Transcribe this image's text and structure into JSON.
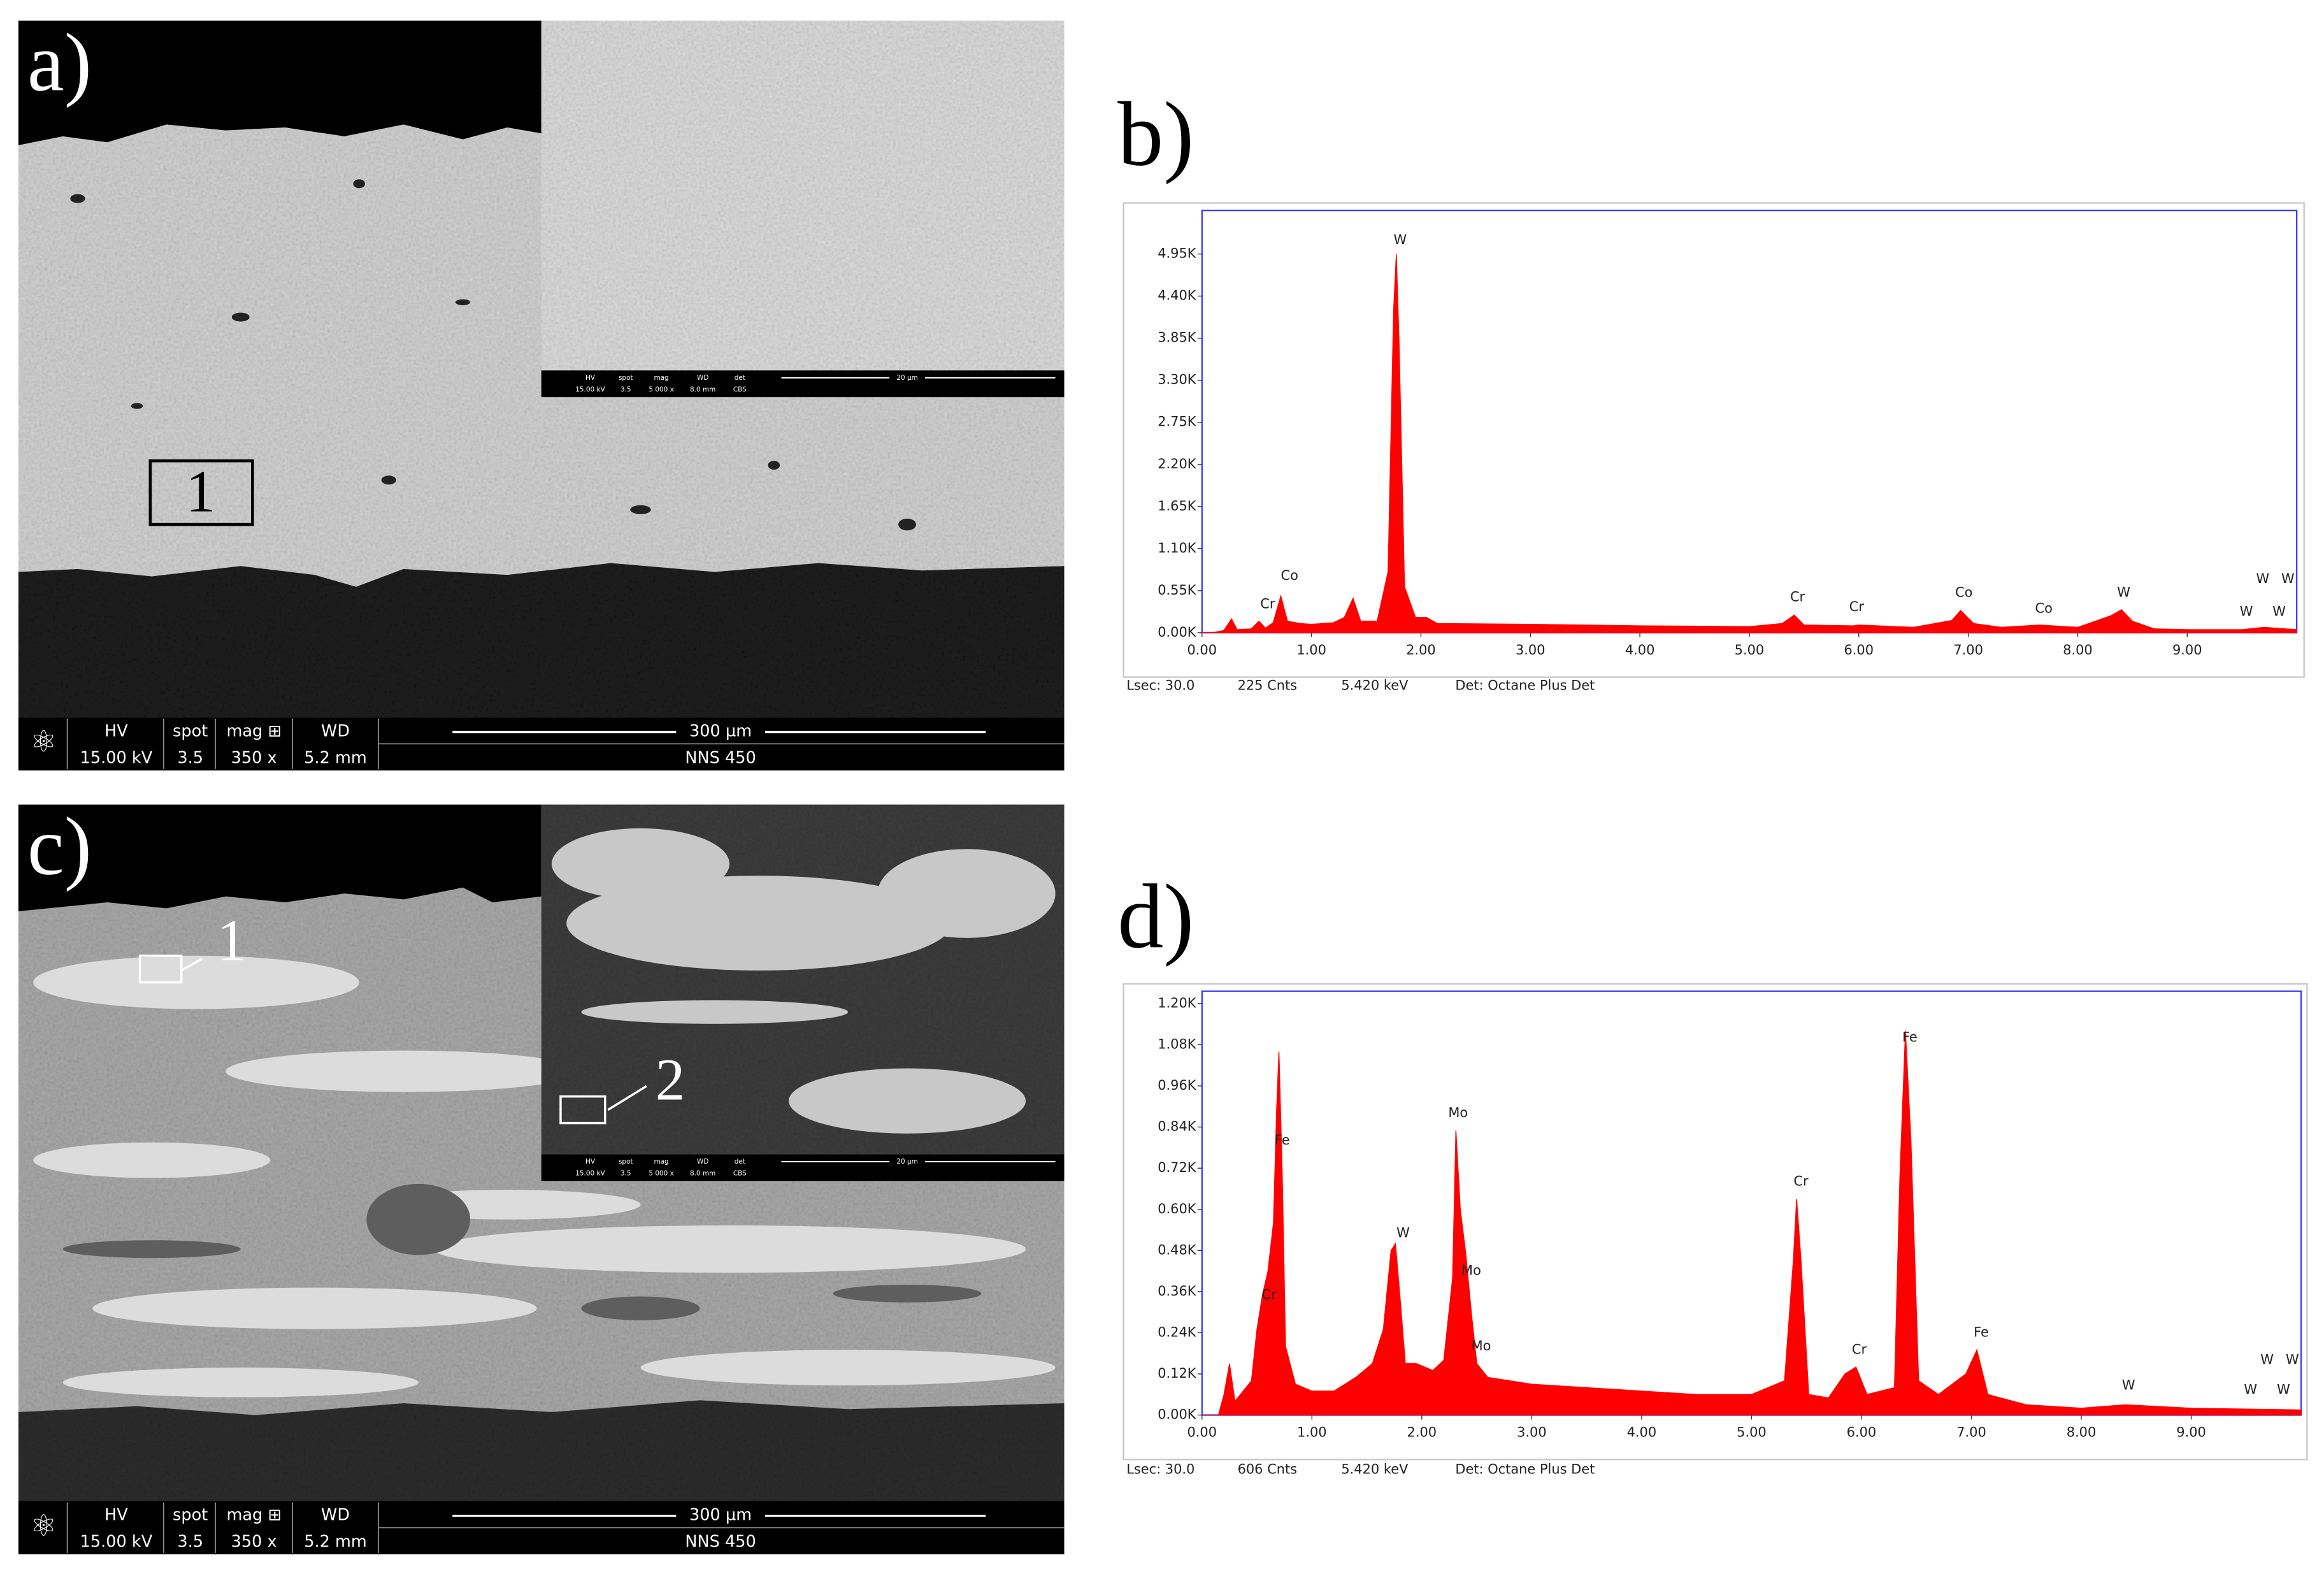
{
  "panels": [
    {
      "label": "a)",
      "info_bar": {
        "labels": [
          "HV",
          "spot",
          "mag ⊞",
          "WD"
        ],
        "values": [
          "15.00 kV",
          "3.5",
          "350 x",
          "5.2 mm"
        ],
        "scale": "300 µm",
        "device": "NNS 450"
      },
      "inset_bar": {
        "labels": [
          "HV",
          "spot",
          "mag",
          "WD",
          "det"
        ],
        "values": [
          "15.00 kV",
          "3.5",
          "5 000 x",
          "8.0 mm",
          "CBS"
        ],
        "scale": "20 µm"
      },
      "markers": [
        "1"
      ]
    },
    {
      "label": "c)",
      "info_bar": {
        "labels": [
          "HV",
          "spot",
          "mag ⊞",
          "WD"
        ],
        "values": [
          "15.00 kV",
          "3.5",
          "350 x",
          "5.2 mm"
        ],
        "scale": "300 µm",
        "device": "NNS 450"
      },
      "inset_bar": {
        "labels": [
          "HV",
          "spot",
          "mag",
          "WD",
          "det"
        ],
        "values": [
          "15.00 kV",
          "3.5",
          "5 000 x",
          "8.0 mm",
          "CBS"
        ],
        "scale": "20 µm"
      },
      "markers": [
        "1",
        "2"
      ]
    }
  ],
  "chart_data": [
    {
      "type": "area",
      "label": "b)",
      "color": "#ff0000",
      "x": [
        0,
        0.1,
        0.2,
        0.27,
        0.32,
        0.45,
        0.52,
        0.58,
        0.65,
        0.72,
        0.78,
        0.9,
        1.0,
        1.2,
        1.3,
        1.38,
        1.45,
        1.6,
        1.7,
        1.75,
        1.775,
        1.8,
        1.85,
        1.95,
        2.05,
        2.15,
        3.0,
        4.0,
        5.0,
        5.3,
        5.41,
        5.5,
        5.95,
        6.0,
        6.5,
        6.85,
        6.93,
        7.05,
        7.3,
        7.65,
        8.0,
        8.3,
        8.4,
        8.5,
        8.7,
        9.0,
        9.5,
        9.7,
        9.8,
        10.0
      ],
      "values": [
        0,
        0,
        30,
        180,
        40,
        50,
        150,
        60,
        130,
        480,
        150,
        120,
        110,
        130,
        200,
        450,
        150,
        150,
        800,
        4200,
        4950,
        3800,
        600,
        200,
        200,
        120,
        110,
        90,
        80,
        120,
        230,
        100,
        90,
        100,
        70,
        160,
        290,
        120,
        70,
        100,
        70,
        220,
        300,
        150,
        50,
        40,
        40,
        70,
        60,
        40
      ],
      "xlim": [
        0,
        10
      ],
      "ylim": [
        0,
        5520
      ],
      "xticks": [
        {
          "value": 0,
          "label": "0.00"
        },
        {
          "value": 1,
          "label": "1.00"
        },
        {
          "value": 2,
          "label": "2.00"
        },
        {
          "value": 3,
          "label": "3.00"
        },
        {
          "value": 4,
          "label": "4.00"
        },
        {
          "value": 5,
          "label": "5.00"
        },
        {
          "value": 6,
          "label": "6.00"
        },
        {
          "value": 7,
          "label": "7.00"
        },
        {
          "value": 8,
          "label": "8.00"
        },
        {
          "value": 9,
          "label": "9.00"
        }
      ],
      "yticks": [
        {
          "value": 0,
          "label": "0.00K"
        },
        {
          "value": 550,
          "label": "0.55K"
        },
        {
          "value": 1100,
          "label": "1.10K"
        },
        {
          "value": 1650,
          "label": "1.65K"
        },
        {
          "value": 2200,
          "label": "2.20K"
        },
        {
          "value": 2750,
          "label": "2.75K"
        },
        {
          "value": 3300,
          "label": "3.30K"
        },
        {
          "value": 3850,
          "label": "3.85K"
        },
        {
          "value": 4400,
          "label": "4.40K"
        },
        {
          "value": 4950,
          "label": "4.95K"
        }
      ],
      "annotations": [
        {
          "text": "W",
          "x": 1.81,
          "y": 5130
        },
        {
          "text": "Cr",
          "x": 0.6,
          "y": 370
        },
        {
          "text": "Co",
          "x": 0.8,
          "y": 740
        },
        {
          "text": "Cr",
          "x": 5.44,
          "y": 460
        },
        {
          "text": "Cr",
          "x": 5.98,
          "y": 330
        },
        {
          "text": "Co",
          "x": 6.96,
          "y": 520
        },
        {
          "text": "Co",
          "x": 7.69,
          "y": 310
        },
        {
          "text": "W",
          "x": 8.42,
          "y": 520
        },
        {
          "text": "W",
          "x": 9.69,
          "y": 700
        },
        {
          "text": "W",
          "x": 9.92,
          "y": 700
        },
        {
          "text": "W",
          "x": 9.54,
          "y": 270
        },
        {
          "text": "W",
          "x": 9.84,
          "y": 270
        }
      ],
      "footer": [
        "Lsec: 30.0",
        "225 Cnts",
        "5.420 keV",
        "Det: Octane Plus Det"
      ]
    },
    {
      "type": "area",
      "label": "d)",
      "color": "#ff0000",
      "x": [
        0,
        0.15,
        0.2,
        0.25,
        0.3,
        0.45,
        0.5,
        0.55,
        0.6,
        0.65,
        0.68,
        0.7,
        0.73,
        0.76,
        0.85,
        1.0,
        1.2,
        1.4,
        1.55,
        1.65,
        1.72,
        1.76,
        1.8,
        1.85,
        1.95,
        2.1,
        2.2,
        2.28,
        2.31,
        2.35,
        2.4,
        2.45,
        2.5,
        2.6,
        3.0,
        3.5,
        4.0,
        4.5,
        5.0,
        5.3,
        5.38,
        5.41,
        5.45,
        5.52,
        5.7,
        5.85,
        5.95,
        6.05,
        6.3,
        6.35,
        6.4,
        6.45,
        6.52,
        6.7,
        6.95,
        7.05,
        7.15,
        7.5,
        8.0,
        8.4,
        9.0,
        10.0
      ],
      "values": [
        0,
        0,
        60,
        150,
        40,
        100,
        250,
        350,
        420,
        560,
        900,
        1060,
        700,
        200,
        90,
        70,
        70,
        110,
        150,
        250,
        480,
        500,
        350,
        150,
        150,
        130,
        160,
        400,
        830,
        600,
        470,
        300,
        150,
        110,
        90,
        80,
        70,
        60,
        60,
        100,
        450,
        630,
        450,
        60,
        50,
        120,
        140,
        60,
        80,
        700,
        1120,
        800,
        100,
        60,
        120,
        190,
        60,
        30,
        20,
        30,
        20,
        15
      ],
      "xlim": [
        0,
        10
      ],
      "ylim": [
        0,
        1236
      ],
      "xticks": [
        {
          "value": 0,
          "label": "0.00"
        },
        {
          "value": 1,
          "label": "1.00"
        },
        {
          "value": 2,
          "label": "2.00"
        },
        {
          "value": 3,
          "label": "3.00"
        },
        {
          "value": 4,
          "label": "4.00"
        },
        {
          "value": 5,
          "label": "5.00"
        },
        {
          "value": 6,
          "label": "6.00"
        },
        {
          "value": 7,
          "label": "7.00"
        },
        {
          "value": 8,
          "label": "8.00"
        },
        {
          "value": 9,
          "label": "9.00"
        }
      ],
      "yticks": [
        {
          "value": 0,
          "label": "0.00K"
        },
        {
          "value": 120,
          "label": "0.12K"
        },
        {
          "value": 240,
          "label": "0.24K"
        },
        {
          "value": 360,
          "label": "0.36K"
        },
        {
          "value": 480,
          "label": "0.48K"
        },
        {
          "value": 600,
          "label": "0.60K"
        },
        {
          "value": 720,
          "label": "0.72K"
        },
        {
          "value": 840,
          "label": "0.84K"
        },
        {
          "value": 960,
          "label": "0.96K"
        },
        {
          "value": 1080,
          "label": "1.08K"
        },
        {
          "value": 1200,
          "label": "1.20K"
        }
      ],
      "annotations": [
        {
          "text": "Fe",
          "x": 6.44,
          "y": 1100
        },
        {
          "text": "Mo",
          "x": 2.33,
          "y": 880
        },
        {
          "text": "Cr",
          "x": 5.45,
          "y": 680
        },
        {
          "text": "Fe",
          "x": 0.73,
          "y": 800
        },
        {
          "text": "W",
          "x": 1.83,
          "y": 530
        },
        {
          "text": "Mo",
          "x": 2.45,
          "y": 420
        },
        {
          "text": "Cr",
          "x": 0.61,
          "y": 350
        },
        {
          "text": "Mo",
          "x": 2.54,
          "y": 200
        },
        {
          "text": "Cr",
          "x": 5.98,
          "y": 190
        },
        {
          "text": "Fe",
          "x": 7.09,
          "y": 240
        },
        {
          "text": "W",
          "x": 8.43,
          "y": 86
        },
        {
          "text": "W",
          "x": 9.69,
          "y": 160
        },
        {
          "text": "W",
          "x": 9.92,
          "y": 160
        },
        {
          "text": "W",
          "x": 9.54,
          "y": 73
        },
        {
          "text": "W",
          "x": 9.84,
          "y": 73
        }
      ],
      "footer": [
        "Lsec: 30.0",
        "606 Cnts",
        "5.420 keV",
        "Det: Octane Plus Det"
      ]
    }
  ]
}
